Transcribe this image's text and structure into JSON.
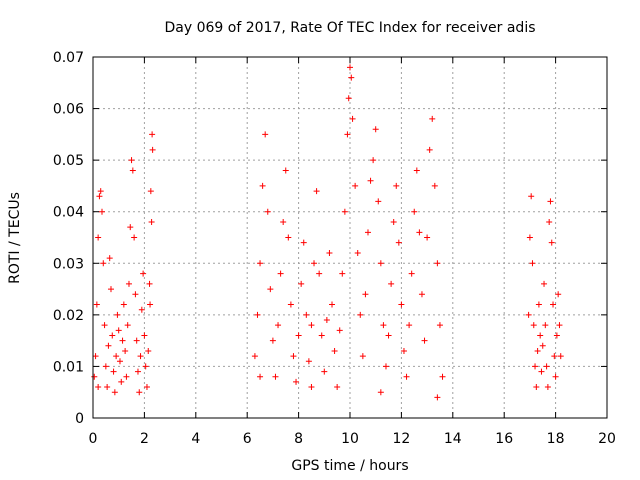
{
  "chart_data": {
    "type": "scatter",
    "title": "Day 069 of 2017, Rate Of TEC Index for receiver adis",
    "xlabel": "GPS time / hours",
    "ylabel": "ROTI / TECUs",
    "xlim": [
      0,
      20
    ],
    "ylim": [
      0,
      0.07
    ],
    "xticks": [
      0,
      2,
      4,
      6,
      8,
      10,
      12,
      14,
      16,
      18,
      20
    ],
    "yticks": [
      0,
      0.01,
      0.02,
      0.03,
      0.04,
      0.05,
      0.06,
      0.07
    ],
    "xtick_labels": [
      "0",
      "2",
      "4",
      "6",
      "8",
      "10",
      "12",
      "14",
      "16",
      "18",
      "20"
    ],
    "ytick_labels": [
      "0",
      "0.01",
      "0.02",
      "0.03",
      "0.04",
      "0.05",
      "0.06",
      "0.07"
    ],
    "grid": true,
    "marker": "+",
    "color": "#ff0000",
    "series": [
      {
        "points": [
          [
            0.05,
            0.008
          ],
          [
            0.1,
            0.012
          ],
          [
            0.15,
            0.022
          ],
          [
            0.2,
            0.035
          ],
          [
            0.25,
            0.043
          ],
          [
            0.3,
            0.044
          ],
          [
            0.35,
            0.04
          ],
          [
            0.4,
            0.03
          ],
          [
            0.45,
            0.018
          ],
          [
            0.5,
            0.01
          ],
          [
            0.55,
            0.006
          ],
          [
            0.6,
            0.014
          ],
          [
            0.65,
            0.031
          ],
          [
            0.7,
            0.025
          ],
          [
            0.75,
            0.016
          ],
          [
            0.8,
            0.009
          ],
          [
            0.85,
            0.005
          ],
          [
            0.9,
            0.012
          ],
          [
            0.95,
            0.02
          ],
          [
            1.0,
            0.017
          ],
          [
            1.05,
            0.011
          ],
          [
            1.1,
            0.007
          ],
          [
            1.15,
            0.015
          ],
          [
            1.2,
            0.022
          ],
          [
            1.25,
            0.013
          ],
          [
            1.3,
            0.008
          ],
          [
            1.35,
            0.018
          ],
          [
            1.4,
            0.026
          ],
          [
            1.45,
            0.037
          ],
          [
            1.5,
            0.05
          ],
          [
            1.55,
            0.048
          ],
          [
            1.6,
            0.035
          ],
          [
            1.65,
            0.024
          ],
          [
            1.7,
            0.015
          ],
          [
            1.75,
            0.009
          ],
          [
            1.8,
            0.005
          ],
          [
            1.85,
            0.012
          ],
          [
            1.9,
            0.021
          ],
          [
            1.95,
            0.028
          ],
          [
            2.0,
            0.016
          ],
          [
            2.05,
            0.01
          ],
          [
            2.1,
            0.006
          ],
          [
            2.15,
            0.013
          ],
          [
            2.2,
            0.026
          ],
          [
            2.25,
            0.044
          ],
          [
            2.3,
            0.055
          ],
          [
            2.32,
            0.052
          ],
          [
            2.28,
            0.038
          ],
          [
            2.22,
            0.022
          ],
          [
            0.2,
            0.006
          ]
        ]
      },
      {
        "points": [
          [
            6.3,
            0.012
          ],
          [
            6.4,
            0.02
          ],
          [
            6.5,
            0.03
          ],
          [
            6.6,
            0.045
          ],
          [
            6.7,
            0.055
          ],
          [
            6.8,
            0.04
          ],
          [
            6.9,
            0.025
          ],
          [
            7.0,
            0.015
          ],
          [
            7.1,
            0.008
          ],
          [
            7.2,
            0.018
          ],
          [
            7.3,
            0.028
          ],
          [
            7.4,
            0.038
          ],
          [
            7.5,
            0.048
          ],
          [
            7.6,
            0.035
          ],
          [
            7.7,
            0.022
          ],
          [
            7.8,
            0.012
          ],
          [
            7.9,
            0.007
          ],
          [
            8.0,
            0.016
          ],
          [
            8.1,
            0.026
          ],
          [
            8.2,
            0.034
          ],
          [
            8.3,
            0.02
          ],
          [
            8.4,
            0.011
          ],
          [
            8.5,
            0.018
          ],
          [
            8.6,
            0.03
          ],
          [
            8.7,
            0.044
          ],
          [
            8.8,
            0.028
          ],
          [
            8.9,
            0.016
          ],
          [
            9.0,
            0.009
          ],
          [
            9.1,
            0.019
          ],
          [
            9.2,
            0.032
          ],
          [
            9.3,
            0.022
          ],
          [
            9.4,
            0.013
          ],
          [
            9.5,
            0.006
          ],
          [
            9.6,
            0.017
          ],
          [
            9.7,
            0.028
          ],
          [
            9.8,
            0.04
          ],
          [
            9.9,
            0.055
          ],
          [
            9.95,
            0.062
          ],
          [
            10.0,
            0.068
          ],
          [
            10.05,
            0.066
          ],
          [
            10.1,
            0.058
          ],
          [
            10.2,
            0.045
          ],
          [
            10.3,
            0.032
          ],
          [
            10.4,
            0.02
          ],
          [
            10.5,
            0.012
          ],
          [
            10.6,
            0.024
          ],
          [
            10.7,
            0.036
          ],
          [
            10.8,
            0.046
          ],
          [
            10.9,
            0.05
          ],
          [
            11.0,
            0.056
          ],
          [
            11.1,
            0.042
          ],
          [
            11.2,
            0.03
          ],
          [
            11.3,
            0.018
          ],
          [
            11.4,
            0.01
          ],
          [
            11.5,
            0.016
          ],
          [
            11.6,
            0.026
          ],
          [
            11.7,
            0.038
          ],
          [
            11.8,
            0.045
          ],
          [
            11.9,
            0.034
          ],
          [
            12.0,
            0.022
          ],
          [
            12.1,
            0.013
          ],
          [
            12.2,
            0.008
          ],
          [
            12.3,
            0.018
          ],
          [
            12.4,
            0.028
          ],
          [
            12.5,
            0.04
          ],
          [
            12.6,
            0.048
          ],
          [
            12.7,
            0.036
          ],
          [
            12.8,
            0.024
          ],
          [
            12.9,
            0.015
          ],
          [
            13.0,
            0.035
          ],
          [
            13.1,
            0.052
          ],
          [
            13.2,
            0.058
          ],
          [
            13.3,
            0.045
          ],
          [
            13.4,
            0.03
          ],
          [
            13.5,
            0.018
          ],
          [
            13.6,
            0.008
          ],
          [
            6.5,
            0.008
          ],
          [
            8.5,
            0.006
          ],
          [
            11.2,
            0.005
          ],
          [
            13.4,
            0.004
          ]
        ]
      },
      {
        "points": [
          [
            16.95,
            0.02
          ],
          [
            17.0,
            0.035
          ],
          [
            17.05,
            0.043
          ],
          [
            17.1,
            0.03
          ],
          [
            17.15,
            0.018
          ],
          [
            17.2,
            0.01
          ],
          [
            17.25,
            0.006
          ],
          [
            17.3,
            0.013
          ],
          [
            17.35,
            0.022
          ],
          [
            17.4,
            0.016
          ],
          [
            17.45,
            0.009
          ],
          [
            17.5,
            0.014
          ],
          [
            17.55,
            0.026
          ],
          [
            17.6,
            0.018
          ],
          [
            17.65,
            0.01
          ],
          [
            17.7,
            0.006
          ],
          [
            17.75,
            0.038
          ],
          [
            17.8,
            0.042
          ],
          [
            17.85,
            0.034
          ],
          [
            17.9,
            0.022
          ],
          [
            17.95,
            0.012
          ],
          [
            18.0,
            0.008
          ],
          [
            18.05,
            0.016
          ],
          [
            18.1,
            0.024
          ],
          [
            18.15,
            0.018
          ],
          [
            18.2,
            0.012
          ]
        ]
      }
    ]
  }
}
